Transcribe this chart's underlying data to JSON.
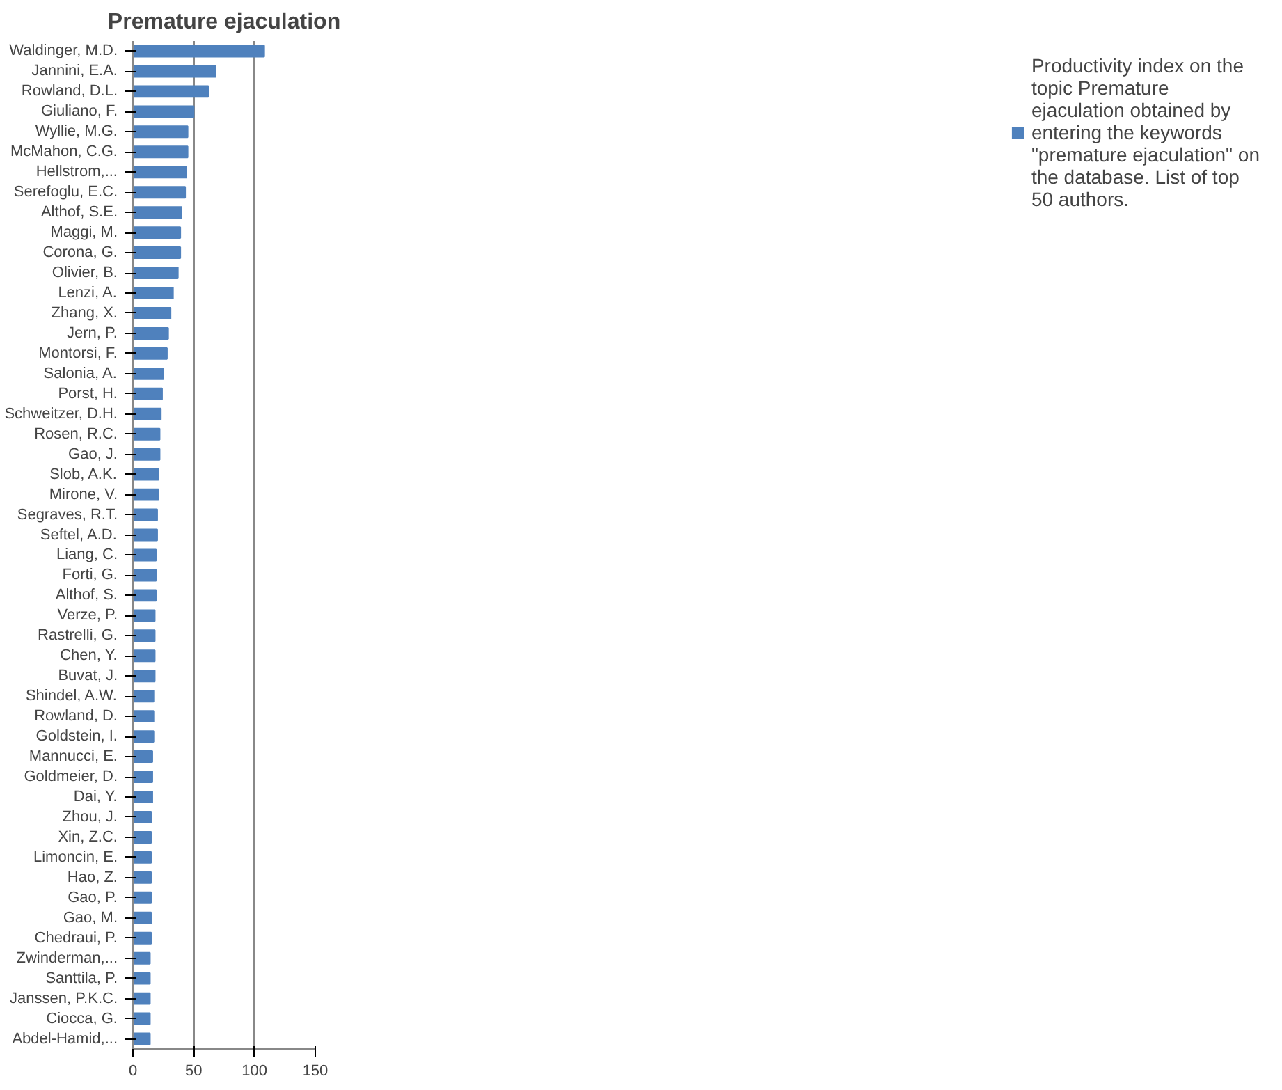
{
  "chart_data": {
    "type": "bar",
    "orientation": "horizontal",
    "title": "Premature ejaculation",
    "categories": [
      "Waldinger, M.D.",
      "Jannini, E.A.",
      "Rowland, D.L.",
      "Giuliano, F.",
      "Wyllie, M.G.",
      "McMahon, C.G.",
      "Hellstrom,...",
      "Serefoglu, E.C.",
      "Althof, S.E.",
      "Maggi, M.",
      "Corona, G.",
      "Olivier, B.",
      "Lenzi, A.",
      "Zhang, X.",
      "Jern, P.",
      "Montorsi, F.",
      "Salonia, A.",
      "Porst, H.",
      "Schweitzer, D.H.",
      "Rosen, R.C.",
      "Gao, J.",
      "Slob, A.K.",
      "Mirone, V.",
      "Segraves, R.T.",
      "Seftel, A.D.",
      "Liang, C.",
      "Forti, G.",
      "Althof, S.",
      "Verze, P.",
      "Rastrelli, G.",
      "Chen, Y.",
      "Buvat, J.",
      "Shindel, A.W.",
      "Rowland, D.",
      "Goldstein, I.",
      "Mannucci, E.",
      "Goldmeier, D.",
      "Dai, Y.",
      "Zhou, J.",
      "Xin, Z.C.",
      "Limoncin, E.",
      "Hao, Z.",
      "Gao, P.",
      "Gao, M.",
      "Chedraui, P.",
      "Zwinderman,...",
      "Santtila, P.",
      "Janssen, P.K.C.",
      "Ciocca, G.",
      "Abdel-Hamid,..."
    ],
    "series": [
      {
        "name": "Productivity index on the topic Premature ejaculation obtained by entering the keywords \"premature ejaculation\" on the database. List of top 50 authors.",
        "color": "#4f81bd",
        "values": [
          108,
          68,
          62,
          50,
          45,
          45,
          44,
          43,
          40,
          39,
          39,
          37,
          33,
          31,
          29,
          28,
          25,
          24,
          23,
          22,
          22,
          21,
          21,
          20,
          20,
          19,
          19,
          19,
          18,
          18,
          18,
          18,
          17,
          17,
          17,
          16,
          16,
          16,
          15,
          15,
          15,
          15,
          15,
          15,
          15,
          14,
          14,
          14,
          14,
          14
        ]
      }
    ],
    "xlim": [
      0,
      150
    ],
    "xticks": [
      0,
      50,
      100,
      150
    ],
    "grid": "x",
    "legend": "right"
  }
}
